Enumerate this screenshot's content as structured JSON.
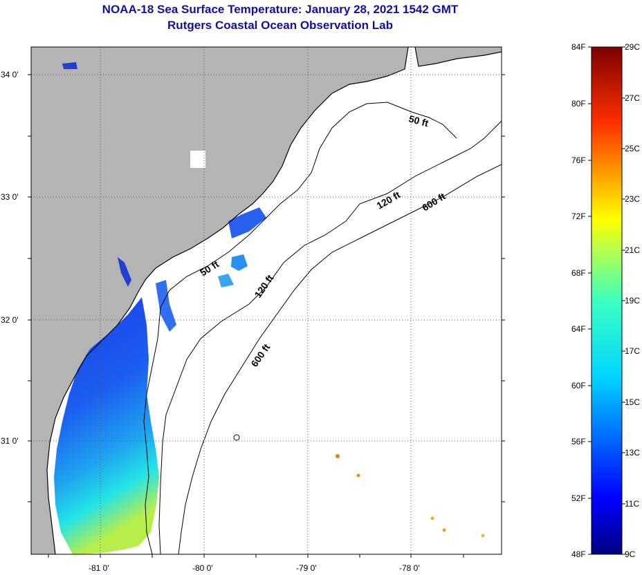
{
  "title": "NOAA-18 Sea Surface Temperature:  January 28, 2021 1542 GMT",
  "subtitle": "Rutgers Coastal Ocean Observation Lab",
  "map": {
    "lat_labels": [
      "34 0'",
      "33 0'",
      "32 0'",
      "31 0'"
    ],
    "lon_labels": [
      "-81 0'",
      "-80 0'",
      "-79 0'",
      "-78 0'"
    ],
    "contours": [
      "50 ft",
      "50 ft",
      "120 ft",
      "120 ft",
      "600 ft",
      "600 ft"
    ],
    "colors": {
      "land": "#b4b4b4",
      "ocean": "#ffffff",
      "grid": "#555555"
    }
  },
  "colorbar": {
    "fahrenheit": [
      "84F",
      "80F",
      "76F",
      "72F",
      "68F",
      "64F",
      "60F",
      "56F",
      "52F",
      "48F"
    ],
    "celsius": [
      "29C",
      "27C",
      "25C",
      "23C",
      "21C",
      "19C",
      "17C",
      "15C",
      "13C",
      "11C",
      "9C"
    ]
  }
}
